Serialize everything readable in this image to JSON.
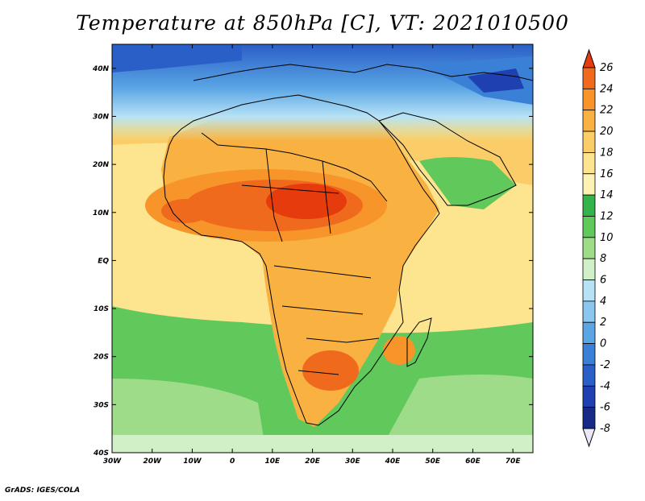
{
  "title": "Temperature at 850hPa [C], VT: 2021010500",
  "credit": "GrADS: IGES/COLA",
  "map": {
    "region": "Africa",
    "lon_range": [
      -30,
      75
    ],
    "lat_range": [
      -40,
      45
    ],
    "lon_ticks": [
      "30W",
      "20W",
      "10W",
      "0",
      "10E",
      "20E",
      "30E",
      "40E",
      "50E",
      "60E",
      "70E"
    ],
    "lat_ticks": [
      "40N",
      "30N",
      "20N",
      "10N",
      "EQ",
      "10S",
      "20S",
      "30S",
      "40S"
    ]
  },
  "colorbar": {
    "labels": [
      "26",
      "24",
      "22",
      "20",
      "18",
      "16",
      "14",
      "12",
      "10",
      "8",
      "6",
      "4",
      "2",
      "0",
      "-2",
      "-4",
      "-6",
      "-8"
    ],
    "colors": [
      "#e63b0c",
      "#f06a1d",
      "#f7952a",
      "#f9b242",
      "#fbcd68",
      "#fde58f",
      "#fbf2b4",
      "#33b44a",
      "#61c85c",
      "#9fdc8a",
      "#d2f0c8",
      "#b7e2f6",
      "#8bc6ee",
      "#5aa5e4",
      "#3a80d6",
      "#2a5fc7",
      "#1f40b0",
      "#162a86",
      "#0e1a5e"
    ]
  }
}
